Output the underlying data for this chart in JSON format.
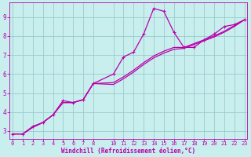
{
  "xlabel": "Windchill (Refroidissement éolien,°C)",
  "bg_color": "#c8eeee",
  "line_color": "#bb00aa",
  "grid_color": "#99cccc",
  "x_jagged": [
    0,
    1,
    2,
    3,
    4,
    5,
    6,
    7,
    8,
    10,
    11,
    12,
    13,
    14,
    15,
    16,
    17,
    18,
    19,
    20,
    21,
    22,
    23
  ],
  "y_jagged": [
    2.85,
    2.85,
    3.25,
    3.45,
    3.85,
    4.6,
    4.5,
    4.65,
    5.5,
    6.0,
    6.9,
    7.15,
    8.1,
    9.45,
    9.3,
    8.2,
    7.4,
    7.4,
    7.8,
    8.1,
    8.5,
    8.6,
    8.85
  ],
  "x_smooth1": [
    0,
    1,
    2,
    3,
    4,
    5,
    6,
    7,
    8,
    10,
    11,
    12,
    13,
    14,
    15,
    16,
    17,
    18,
    19,
    20,
    21,
    22,
    23
  ],
  "y_smooth1": [
    2.85,
    2.85,
    3.2,
    3.45,
    3.85,
    4.5,
    4.5,
    4.65,
    5.5,
    5.45,
    5.75,
    6.1,
    6.5,
    6.85,
    7.1,
    7.3,
    7.35,
    7.55,
    7.75,
    7.95,
    8.2,
    8.5,
    8.85
  ],
  "x_smooth2": [
    0,
    1,
    2,
    3,
    4,
    5,
    6,
    7,
    8,
    10,
    11,
    12,
    13,
    14,
    15,
    16,
    17,
    18,
    19,
    20,
    21,
    22,
    23
  ],
  "y_smooth2": [
    2.85,
    2.85,
    3.2,
    3.45,
    3.85,
    4.5,
    4.5,
    4.65,
    5.5,
    5.55,
    5.85,
    6.2,
    6.6,
    6.95,
    7.2,
    7.4,
    7.4,
    7.6,
    7.8,
    8.0,
    8.25,
    8.55,
    8.85
  ],
  "xlim": [
    -0.3,
    23.3
  ],
  "ylim": [
    2.6,
    9.75
  ],
  "yticks": [
    3,
    4,
    5,
    6,
    7,
    8,
    9
  ],
  "xtick_positions": [
    0,
    1,
    2,
    3,
    4,
    5,
    6,
    7,
    8,
    10,
    11,
    12,
    13,
    14,
    15,
    16,
    17,
    18,
    19,
    20,
    21,
    22,
    23
  ],
  "xtick_labels": [
    "0",
    "1",
    "2",
    "3",
    "4",
    "5",
    "6",
    "7",
    "8",
    "10",
    "11",
    "12",
    "13",
    "14",
    "15",
    "16",
    "17",
    "18",
    "19",
    "20",
    "21",
    "22",
    "23"
  ]
}
